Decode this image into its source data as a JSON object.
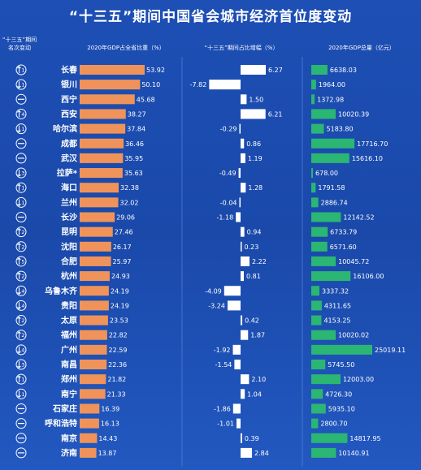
{
  "chart_data": {
    "type": "table",
    "title": "“十三五”期间中国省会城市经济首位度变动",
    "column_headers": {
      "rank_change": "“十三五”期间名次变动",
      "share": "2020年GDP占全省比重（%）",
      "increase": "“十三五”期间占比增幅（%）",
      "gdp": "2020年GDP总量（亿元）"
    },
    "colors": {
      "share_bar": "#f0935a",
      "increase_bar": "#ffffff",
      "gdp_bar": "#2bb673",
      "background": "#1d4fb5"
    },
    "rows": [
      {
        "city": "长春",
        "rank_dir": "up",
        "rank_num": "1",
        "share": 53.92,
        "share_label": "53.92",
        "increase": 6.27,
        "increase_label": "6.27",
        "gdp": 6638.03,
        "gdp_label": "6638.03"
      },
      {
        "city": "银川",
        "rank_dir": "down",
        "rank_num": "1",
        "share": 50.1,
        "share_label": "50.10",
        "increase": -7.82,
        "increase_label": "-7.82",
        "gdp": 1964.0,
        "gdp_label": "1964.00"
      },
      {
        "city": "西宁",
        "rank_dir": "none",
        "rank_num": "",
        "share": 45.68,
        "share_label": "45.68",
        "increase": 1.5,
        "increase_label": "1.50",
        "gdp": 1372.98,
        "gdp_label": "1372.98"
      },
      {
        "city": "西安",
        "rank_dir": "up",
        "rank_num": "4",
        "share": 38.27,
        "share_label": "38.27",
        "increase": 6.21,
        "increase_label": "6.21",
        "gdp": 10020.39,
        "gdp_label": "10020.39"
      },
      {
        "city": "哈尔滨",
        "rank_dir": "down",
        "rank_num": "1",
        "share": 37.84,
        "share_label": "37.84",
        "increase": -0.29,
        "increase_label": "-0.29",
        "gdp": 5183.8,
        "gdp_label": "5183.80"
      },
      {
        "city": "成都",
        "rank_dir": "none",
        "rank_num": "",
        "share": 36.46,
        "share_label": "36.46",
        "increase": 0.86,
        "increase_label": "0.86",
        "gdp": 17716.7,
        "gdp_label": "17716.70"
      },
      {
        "city": "武汉",
        "rank_dir": "none",
        "rank_num": "",
        "share": 35.95,
        "share_label": "35.95",
        "increase": 1.19,
        "increase_label": "1.19",
        "gdp": 15616.1,
        "gdp_label": "15616.10"
      },
      {
        "city": "拉萨*",
        "rank_dir": "down",
        "rank_num": "3",
        "share": 35.63,
        "share_label": "35.63",
        "increase": -0.49,
        "increase_label": "-0.49",
        "gdp": 678.0,
        "gdp_label": "678.00"
      },
      {
        "city": "海口",
        "rank_dir": "up",
        "rank_num": "1",
        "share": 32.38,
        "share_label": "32.38",
        "increase": 1.28,
        "increase_label": "1.28",
        "gdp": 1791.58,
        "gdp_label": "1791.58"
      },
      {
        "city": "兰州",
        "rank_dir": "down",
        "rank_num": "1",
        "share": 32.02,
        "share_label": "32.02",
        "increase": -0.04,
        "increase_label": "-0.04",
        "gdp": 2886.74,
        "gdp_label": "2886.74"
      },
      {
        "city": "长沙",
        "rank_dir": "none",
        "rank_num": "",
        "share": 29.06,
        "share_label": "29.06",
        "increase": -1.18,
        "increase_label": "-1.18",
        "gdp": 12142.52,
        "gdp_label": "12142.52"
      },
      {
        "city": "昆明",
        "rank_dir": "up",
        "rank_num": "2",
        "share": 27.46,
        "share_label": "27.46",
        "increase": 0.94,
        "increase_label": "0.94",
        "gdp": 6733.79,
        "gdp_label": "6733.79"
      },
      {
        "city": "沈阳",
        "rank_dir": "up",
        "rank_num": "2",
        "share": 26.17,
        "share_label": "26.17",
        "increase": 0.23,
        "increase_label": "0.23",
        "gdp": 6571.6,
        "gdp_label": "6571.60"
      },
      {
        "city": "合肥",
        "rank_dir": "up",
        "rank_num": "5",
        "share": 25.97,
        "share_label": "25.97",
        "increase": 2.22,
        "increase_label": "2.22",
        "gdp": 10045.72,
        "gdp_label": "10045.72"
      },
      {
        "city": "杭州",
        "rank_dir": "up",
        "rank_num": "2",
        "share": 24.93,
        "share_label": "24.93",
        "increase": 0.81,
        "increase_label": "0.81",
        "gdp": 16106.0,
        "gdp_label": "16106.00"
      },
      {
        "city": "乌鲁木齐",
        "rank_dir": "down",
        "rank_num": "4",
        "share": 24.19,
        "share_label": "24.19",
        "increase": -4.09,
        "increase_label": "-4.09",
        "gdp": 3337.32,
        "gdp_label": "3337.32"
      },
      {
        "city": "贵阳",
        "rank_dir": "down",
        "rank_num": "4",
        "share": 24.19,
        "share_label": "24.19",
        "increase": -3.24,
        "increase_label": "-3.24",
        "gdp": 4311.65,
        "gdp_label": "4311.65"
      },
      {
        "city": "太原",
        "rank_dir": "up",
        "rank_num": "2",
        "share": 23.53,
        "share_label": "23.53",
        "increase": 0.42,
        "increase_label": "0.42",
        "gdp": 4153.25,
        "gdp_label": "4153.25"
      },
      {
        "city": "福州",
        "rank_dir": "up",
        "rank_num": "2",
        "share": 22.82,
        "share_label": "22.82",
        "increase": 1.87,
        "increase_label": "1.87",
        "gdp": 10020.02,
        "gdp_label": "10020.02"
      },
      {
        "city": "广州",
        "rank_dir": "down",
        "rank_num": "4",
        "share": 22.59,
        "share_label": "22.59",
        "increase": -1.92,
        "increase_label": "-1.92",
        "gdp": 25019.11,
        "gdp_label": "25019.11"
      },
      {
        "city": "南昌",
        "rank_dir": "down",
        "rank_num": "3",
        "share": 22.36,
        "share_label": "22.36",
        "increase": -1.54,
        "increase_label": "-1.54",
        "gdp": 5745.5,
        "gdp_label": "5745.50"
      },
      {
        "city": "郑州",
        "rank_dir": "up",
        "rank_num": "1",
        "share": 21.82,
        "share_label": "21.82",
        "increase": 2.1,
        "increase_label": "2.10",
        "gdp": 12003.0,
        "gdp_label": "12003.00"
      },
      {
        "city": "南宁",
        "rank_dir": "down",
        "rank_num": "1",
        "share": 21.33,
        "share_label": "21.33",
        "increase": 1.04,
        "increase_label": "1.04",
        "gdp": 4726.3,
        "gdp_label": "4726.30"
      },
      {
        "city": "石家庄",
        "rank_dir": "none",
        "rank_num": "",
        "share": 16.39,
        "share_label": "16.39",
        "increase": -1.86,
        "increase_label": "-1.86",
        "gdp": 5935.1,
        "gdp_label": "5935.10"
      },
      {
        "city": "呼和浩特",
        "rank_dir": "none",
        "rank_num": "",
        "share": 16.13,
        "share_label": "16.13",
        "increase": -1.01,
        "increase_label": "-1.01",
        "gdp": 2800.7,
        "gdp_label": "2800.70"
      },
      {
        "city": "南京",
        "rank_dir": "none",
        "rank_num": "",
        "share": 14.43,
        "share_label": "14.43",
        "increase": 0.39,
        "increase_label": "0.39",
        "gdp": 14817.95,
        "gdp_label": "14817.95"
      },
      {
        "city": "济南",
        "rank_dir": "none",
        "rank_num": "",
        "share": 13.87,
        "share_label": "13.87",
        "increase": 2.84,
        "increase_label": "2.84",
        "gdp": 10140.91,
        "gdp_label": "10140.91"
      }
    ]
  }
}
